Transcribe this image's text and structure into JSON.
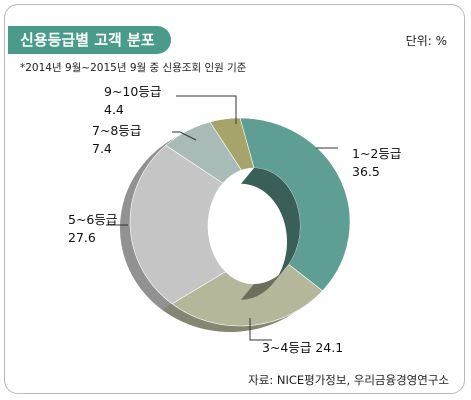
{
  "header": {
    "title": "신용등급별 고객 분포",
    "unit": "단위: %",
    "subtitle": "*2014년 9월~2015년 9월 중 신용조회 인원 기준",
    "source": "자료: NICE평가정보, 우리금융경영연구소"
  },
  "chart_data": {
    "type": "pie",
    "variant": "3d-donut",
    "categories": [
      "1~2등급",
      "3~4등급",
      "5~6등급",
      "7~8등급",
      "9~10등급"
    ],
    "values": [
      36.5,
      24.1,
      27.6,
      7.4,
      4.4
    ],
    "value_labels": [
      "36.5",
      "24.1",
      "27.6",
      "7.4",
      "4.4"
    ],
    "colors": [
      "#5f9e92",
      "#b5b79a",
      "#c5c5c5",
      "#a9bbb6",
      "#a6a46b"
    ],
    "start": "top, clockwise"
  }
}
